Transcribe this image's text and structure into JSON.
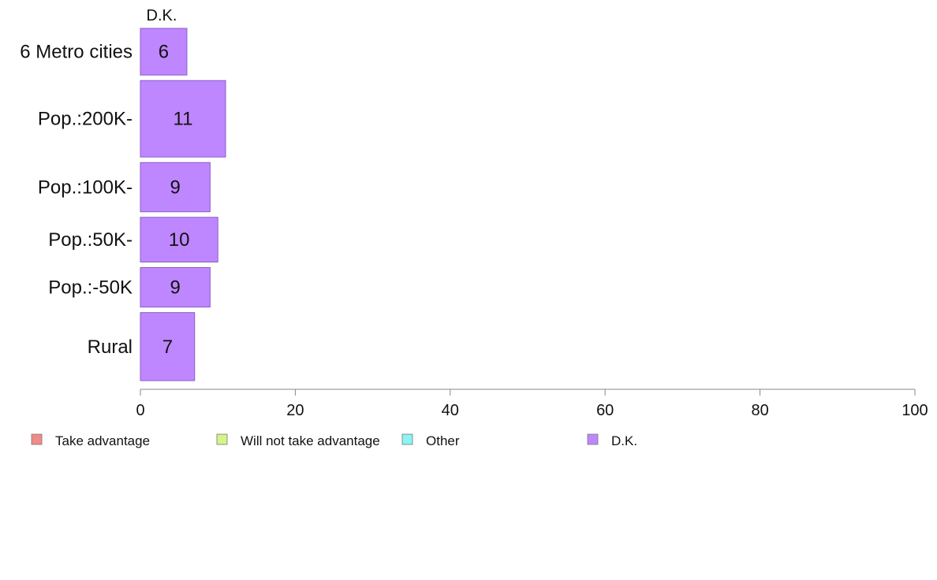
{
  "chart_data": {
    "type": "bar",
    "orientation": "horizontal",
    "variable_width": true,
    "column_header": "D.K.",
    "categories": [
      "6 Metro cities",
      "Pop.:200K-",
      "Pop.:100K-",
      "Pop.:50K-",
      "Pop.:-50K",
      "Rural"
    ],
    "series": [
      {
        "name": "D.K.",
        "values": [
          6,
          11,
          9,
          10,
          9,
          7
        ],
        "color": "#bf87ff",
        "stroke": "#8a5cc9"
      }
    ],
    "relative_sample_sizes": [
      0.72,
      1.18,
      0.76,
      0.69,
      0.61,
      1.05
    ],
    "x_ticks": [
      0,
      20,
      40,
      60,
      80,
      100
    ],
    "xlim": [
      0,
      100
    ],
    "grid": false,
    "legend_position": "bottom",
    "legend": [
      {
        "label": "Take advantage",
        "color": "#f28b86"
      },
      {
        "label": "Will not take advantage",
        "color": "#d4f58a"
      },
      {
        "label": "Other",
        "color": "#8af5f2"
      },
      {
        "label": "D.K.",
        "color": "#bf87ff"
      }
    ]
  }
}
